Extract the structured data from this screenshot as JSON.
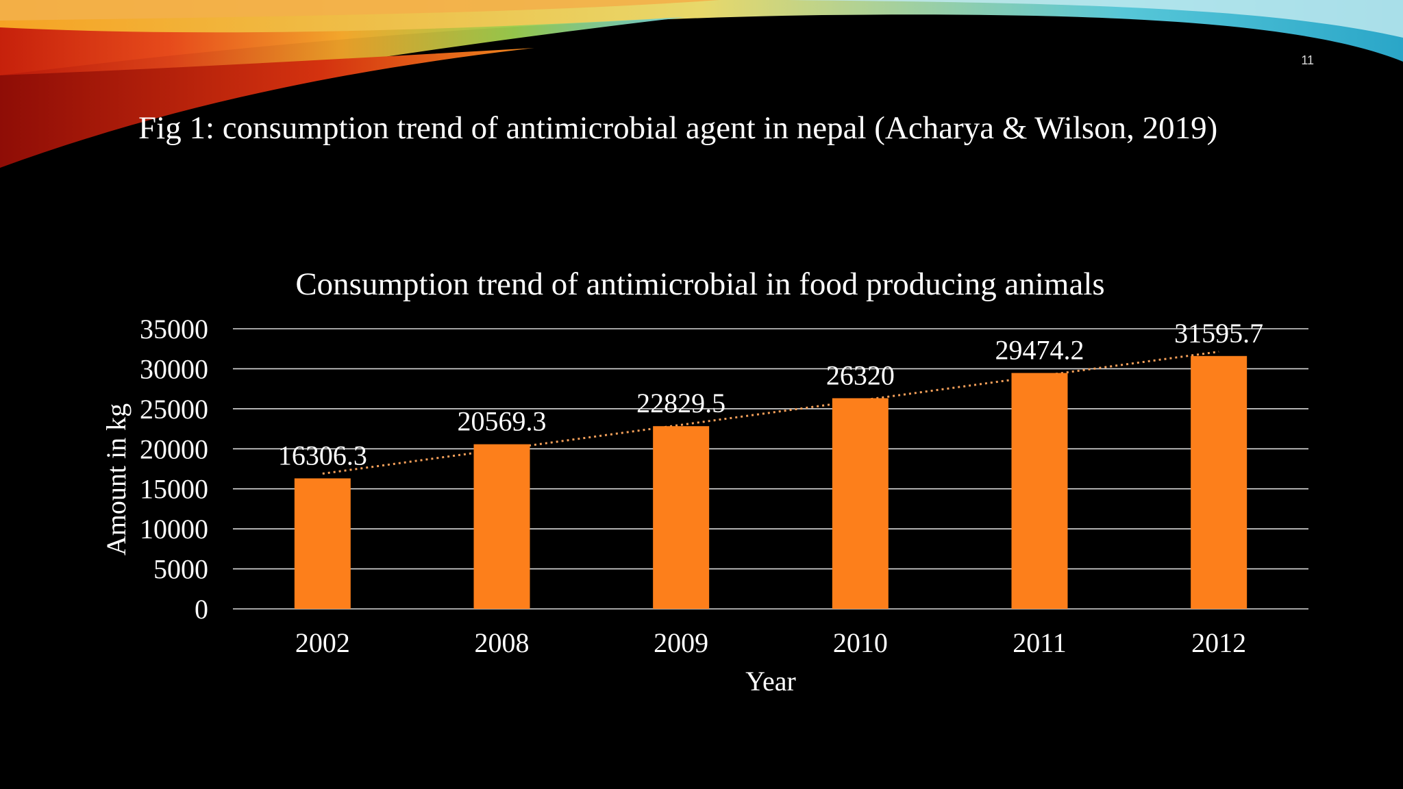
{
  "slide": {
    "number": "11",
    "caption": "Fig 1: consumption trend of antimicrobial agent in nepal (Acharya & Wilson, 2019)"
  },
  "colors": {
    "background": "#000000",
    "bar": "#fd7f1b",
    "trendline": "#f5a05a",
    "gridline": "#d9d9d9",
    "text": "#ffffff"
  },
  "chart_data": {
    "type": "bar",
    "title": "Consumption trend of antimicrobial in food producing animals",
    "xlabel": "Year",
    "ylabel": "Amount in kg",
    "categories": [
      "2002",
      "2008",
      "2009",
      "2010",
      "2011",
      "2012"
    ],
    "values": [
      16306.3,
      20569.3,
      22829.5,
      26320,
      29474.2,
      31595.7
    ],
    "data_labels": [
      "16306.3",
      "20569.3",
      "22829.5",
      "26320",
      "29474.2",
      "31595.7"
    ],
    "ylim": [
      0,
      35000
    ],
    "yticks": [
      "0",
      "5000",
      "10000",
      "15000",
      "20000",
      "25000",
      "30000",
      "35000"
    ],
    "grid": true,
    "trendline": "linear, dotted",
    "legend": "none"
  }
}
